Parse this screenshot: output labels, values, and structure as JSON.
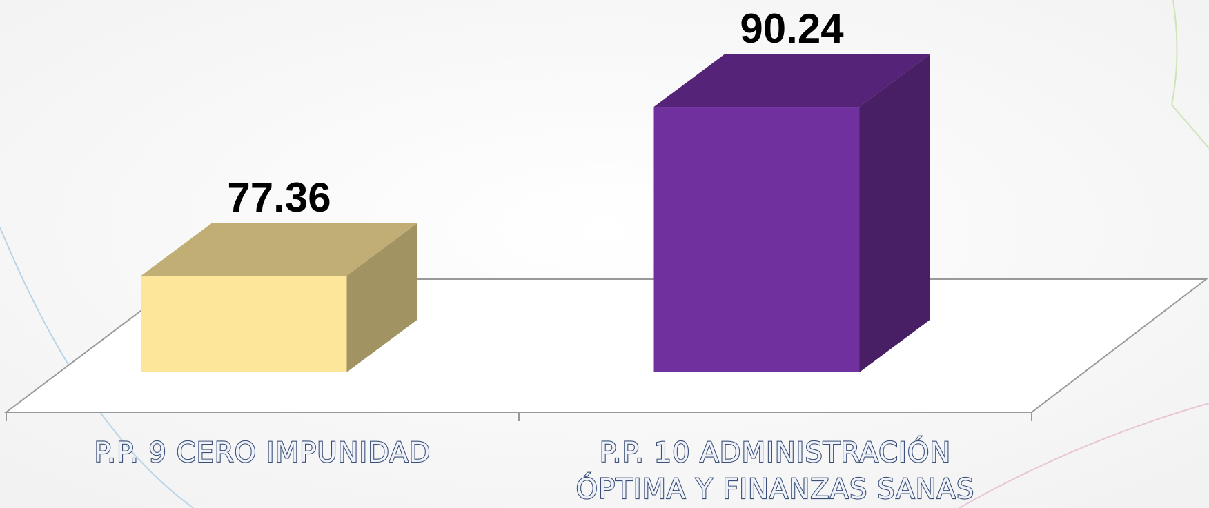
{
  "chart_data": {
    "type": "bar3d",
    "categories": [
      "P.P. 9 CERO IMPUNIDAD",
      "P.P. 10 ADMINISTRACIÓN ÓPTIMA Y FINANZAS SANAS"
    ],
    "values": [
      77.36,
      90.24
    ],
    "colors": [
      "#fde59a",
      "#70309e"
    ],
    "ylim": [
      70,
      95
    ]
  }
}
